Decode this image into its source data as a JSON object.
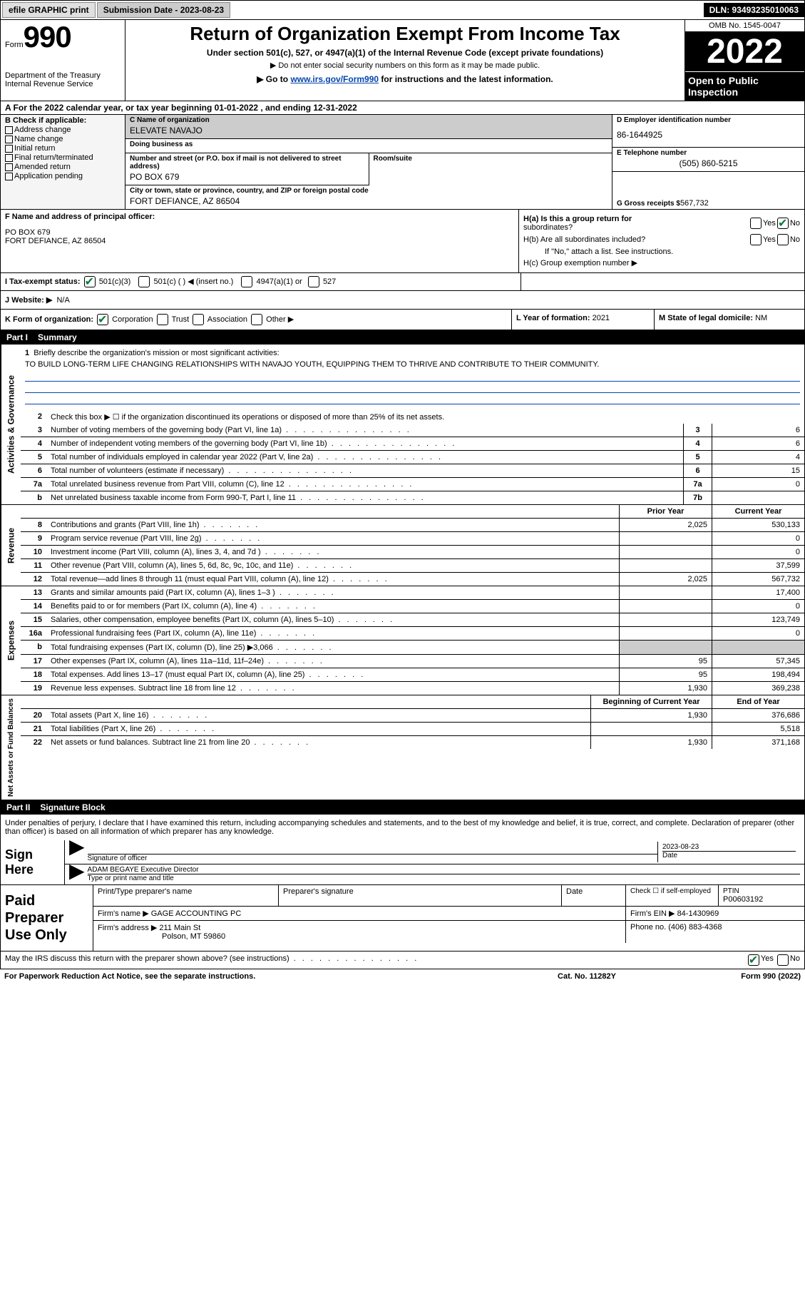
{
  "topbar": {
    "efile_btn": "efile GRAPHIC print",
    "submission_label": "Submission Date - 2023-08-23",
    "dln": "DLN: 93493235010063"
  },
  "header": {
    "form_label": "Form",
    "form_num": "990",
    "title": "Return of Organization Exempt From Income Tax",
    "subtitle": "Under section 501(c), 527, or 4947(a)(1) of the Internal Revenue Code (except private foundations)",
    "note1": "▶ Do not enter social security numbers on this form as it may be made public.",
    "note2_pre": "▶ Go to ",
    "note2_link": "www.irs.gov/Form990",
    "note2_post": " for instructions and the latest information.",
    "omb": "OMB No. 1545-0047",
    "tax_year": "2022",
    "open_inspect": "Open to Public Inspection",
    "dept": "Department of the Treasury",
    "irs": "Internal Revenue Service"
  },
  "line_a": "A For the 2022 calendar year, or tax year beginning 01-01-2022   , and ending 12-31-2022",
  "box_b": {
    "label": "B Check if applicable:",
    "addr_change": "Address change",
    "name_change": "Name change",
    "initial": "Initial return",
    "final": "Final return/terminated",
    "amended": "Amended return",
    "app_pending": "Application pending"
  },
  "box_c": {
    "name_label": "C Name of organization",
    "name": "ELEVATE NAVAJO",
    "dba_label": "Doing business as",
    "dba": "",
    "street_label": "Number and street (or P.O. box if mail is not delivered to street address)",
    "street": "PO BOX 679",
    "suite_label": "Room/suite",
    "city_label": "City or town, state or province, country, and ZIP or foreign postal code",
    "city": "FORT DEFIANCE, AZ  86504"
  },
  "box_d": {
    "ein_label": "D Employer identification number",
    "ein": "86-1644925",
    "phone_label": "E Telephone number",
    "phone": "(505) 860-5215",
    "gross_label": "G Gross receipts $",
    "gross": "567,732"
  },
  "box_f": {
    "label": "F  Name and address of principal officer:",
    "line1": "PO BOX 679",
    "line2": "FORT DEFIANCE, AZ  86504"
  },
  "box_h": {
    "ha_label": "H(a)  Is this a group return for",
    "ha_label2": "subordinates?",
    "hb_label": "H(b)  Are all subordinates included?",
    "hb_note": "If \"No,\" attach a list. See instructions.",
    "hc_label": "H(c)  Group exemption number ▶",
    "yes": "Yes",
    "no": "No"
  },
  "box_i": {
    "label": "I   Tax-exempt status:",
    "opt1": "501(c)(3)",
    "opt2": "501(c) (  ) ◀ (insert no.)",
    "opt3": "4947(a)(1) or",
    "opt4": "527"
  },
  "box_j": {
    "label": "J   Website: ▶",
    "val": "N/A"
  },
  "box_k": {
    "label": "K Form of organization:",
    "corp": "Corporation",
    "trust": "Trust",
    "assoc": "Association",
    "other": "Other ▶"
  },
  "box_l": {
    "label": "L Year of formation:",
    "val": "2021"
  },
  "box_m": {
    "label": "M State of legal domicile:",
    "val": "NM"
  },
  "part1": {
    "num": "Part I",
    "title": "Summary",
    "line1_label": "Briefly describe the organization's mission or most significant activities:",
    "mission": "TO BUILD LONG-TERM LIFE CHANGING RELATIONSHIPS WITH NAVAJO YOUTH, EQUIPPING THEM TO THRIVE AND CONTRIBUTE TO THEIR COMMUNITY.",
    "line2": "Check this box ▶ ☐  if the organization discontinued its operations or disposed of more than 25% of its net assets.",
    "lines_ag": [
      {
        "n": "3",
        "t": "Number of voting members of the governing body (Part VI, line 1a)",
        "box": "3",
        "v2": "6"
      },
      {
        "n": "4",
        "t": "Number of independent voting members of the governing body (Part VI, line 1b)",
        "box": "4",
        "v2": "6"
      },
      {
        "n": "5",
        "t": "Total number of individuals employed in calendar year 2022 (Part V, line 2a)",
        "box": "5",
        "v2": "4"
      },
      {
        "n": "6",
        "t": "Total number of volunteers (estimate if necessary)",
        "box": "6",
        "v2": "15"
      },
      {
        "n": "7a",
        "t": "Total unrelated business revenue from Part VIII, column (C), line 12",
        "box": "7a",
        "v2": "0"
      },
      {
        "n": "b",
        "t": "Net unrelated business taxable income from Form 990-T, Part I, line 11",
        "box": "7b",
        "v2": ""
      }
    ],
    "hdr_prior": "Prior Year",
    "hdr_current": "Current Year",
    "lines_rev": [
      {
        "n": "8",
        "t": "Contributions and grants (Part VIII, line 1h)",
        "v1": "2,025",
        "v2": "530,133"
      },
      {
        "n": "9",
        "t": "Program service revenue (Part VIII, line 2g)",
        "v1": "",
        "v2": "0"
      },
      {
        "n": "10",
        "t": "Investment income (Part VIII, column (A), lines 3, 4, and 7d )",
        "v1": "",
        "v2": "0"
      },
      {
        "n": "11",
        "t": "Other revenue (Part VIII, column (A), lines 5, 6d, 8c, 9c, 10c, and 11e)",
        "v1": "",
        "v2": "37,599"
      },
      {
        "n": "12",
        "t": "Total revenue—add lines 8 through 11 (must equal Part VIII, column (A), line 12)",
        "v1": "2,025",
        "v2": "567,732"
      }
    ],
    "lines_exp": [
      {
        "n": "13",
        "t": "Grants and similar amounts paid (Part IX, column (A), lines 1–3 )",
        "v1": "",
        "v2": "17,400"
      },
      {
        "n": "14",
        "t": "Benefits paid to or for members (Part IX, column (A), line 4)",
        "v1": "",
        "v2": "0"
      },
      {
        "n": "15",
        "t": "Salaries, other compensation, employee benefits (Part IX, column (A), lines 5–10)",
        "v1": "",
        "v2": "123,749"
      },
      {
        "n": "16a",
        "t": "Professional fundraising fees (Part IX, column (A), line 11e)",
        "v1": "",
        "v2": "0"
      },
      {
        "n": "b",
        "t": "Total fundraising expenses (Part IX, column (D), line 25) ▶3,066",
        "v1": "shaded",
        "v2": "shaded"
      },
      {
        "n": "17",
        "t": "Other expenses (Part IX, column (A), lines 11a–11d, 11f–24e)",
        "v1": "95",
        "v2": "57,345"
      },
      {
        "n": "18",
        "t": "Total expenses. Add lines 13–17 (must equal Part IX, column (A), line 25)",
        "v1": "95",
        "v2": "198,494"
      },
      {
        "n": "19",
        "t": "Revenue less expenses. Subtract line 18 from line 12",
        "v1": "1,930",
        "v2": "369,238"
      }
    ],
    "hdr_begin": "Beginning of Current Year",
    "hdr_end": "End of Year",
    "lines_na": [
      {
        "n": "20",
        "t": "Total assets (Part X, line 16)",
        "v1": "1,930",
        "v2": "376,686"
      },
      {
        "n": "21",
        "t": "Total liabilities (Part X, line 26)",
        "v1": "",
        "v2": "5,518"
      },
      {
        "n": "22",
        "t": "Net assets or fund balances. Subtract line 21 from line 20",
        "v1": "1,930",
        "v2": "371,168"
      }
    ],
    "sidebar_ag": "Activities & Governance",
    "sidebar_rev": "Revenue",
    "sidebar_exp": "Expenses",
    "sidebar_na": "Net Assets or Fund Balances"
  },
  "part2": {
    "num": "Part II",
    "title": "Signature Block",
    "decl": "Under penalties of perjury, I declare that I have examined this return, including accompanying schedules and statements, and to the best of my knowledge and belief, it is true, correct, and complete. Declaration of preparer (other than officer) is based on all information of which preparer has any knowledge.",
    "sign_here": "Sign Here",
    "sig_officer": "Signature of officer",
    "sig_date": "2023-08-23",
    "date_label": "Date",
    "name_title": "ADAM BEGAYE  Executive Director",
    "name_title_label": "Type or print name and title",
    "paid_prep": "Paid Preparer Use Only",
    "print_name_label": "Print/Type preparer's name",
    "prep_sig_label": "Preparer's signature",
    "check_self": "Check ☐  if self-employed",
    "ptin_label": "PTIN",
    "ptin": "P00603192",
    "firm_name_label": "Firm's name   ▶",
    "firm_name": "GAGE ACCOUNTING PC",
    "firm_ein_label": "Firm's EIN ▶",
    "firm_ein": "84-1430969",
    "firm_addr_label": "Firm's address ▶",
    "firm_addr1": "211 Main St",
    "firm_addr2": "Polson, MT  59860",
    "firm_phone_label": "Phone no.",
    "firm_phone": "(406) 883-4368",
    "discuss": "May the IRS discuss this return with the preparer shown above? (see instructions)",
    "yes": "Yes",
    "no": "No"
  },
  "footer": {
    "pra": "For Paperwork Reduction Act Notice, see the separate instructions.",
    "cat": "Cat. No. 11282Y",
    "form": "Form 990 (2022)"
  }
}
